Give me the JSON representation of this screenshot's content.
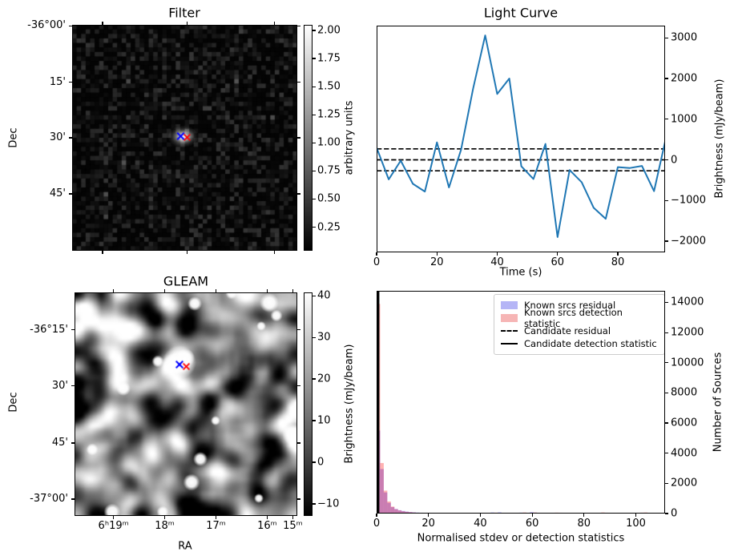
{
  "figure": {
    "background": "#ffffff"
  },
  "filter_panel": {
    "title": "Filter",
    "ylabel": "Dec",
    "dec_ticks": [
      "-36°00'",
      "15'",
      "30'",
      "45'"
    ],
    "colorbar": {
      "label": "arbitrary units",
      "ticks": [
        "2.00",
        "1.75",
        "1.50",
        "1.25",
        "1.00",
        "0.75",
        "0.50",
        "0.25"
      ]
    },
    "markers": [
      {
        "name": "known-source-marker",
        "shape": "x",
        "color": "#0000ff"
      },
      {
        "name": "candidate-marker",
        "shape": "x",
        "color": "#ff0000"
      }
    ]
  },
  "light_curve_panel": {
    "title": "Light Curve",
    "xlabel": "Time (s)",
    "ylabel": "Brightness (mJy/beam)",
    "xticks": [
      "0",
      "20",
      "40",
      "60",
      "80"
    ],
    "yticks": [
      "3000",
      "2000",
      "1000",
      "0",
      "−1000",
      "−2000"
    ]
  },
  "gleam_panel": {
    "title": "GLEAM",
    "xlabel": "RA",
    "ylabel": "Dec",
    "ra_ticks": [
      "6ʰ19ᵐ",
      "18ᵐ",
      "17ᵐ",
      "16ᵐ",
      "15ᵐ"
    ],
    "dec_ticks": [
      "-36°15'",
      "30'",
      "45'",
      "-37°00'"
    ],
    "colorbar": {
      "label": "Brightness (mJy/beam)",
      "ticks": [
        "40",
        "30",
        "20",
        "10",
        "0",
        "−10"
      ]
    },
    "markers": [
      {
        "name": "known-source-marker",
        "shape": "x",
        "color": "#0000ff"
      },
      {
        "name": "candidate-marker",
        "shape": "x",
        "color": "#ff0000"
      }
    ]
  },
  "histogram_panel": {
    "xlabel": "Normalised stdev or detection statistics",
    "ylabel": "Number of Sources",
    "xticks": [
      "0",
      "20",
      "40",
      "60",
      "80",
      "100"
    ],
    "yticks": [
      "0",
      "2000",
      "4000",
      "6000",
      "8000",
      "10000",
      "12000",
      "14000"
    ],
    "legend": {
      "items": [
        {
          "label": "Known srcs residual",
          "swatch": "patch",
          "color": "#b5b5f6"
        },
        {
          "label": "Known srcs detection statistic",
          "swatch": "patch",
          "color": "#f6b5b5"
        },
        {
          "label": "Candidate residual",
          "swatch": "dashed-line",
          "color": "#000000"
        },
        {
          "label": "Candidate detection statistic",
          "swatch": "solid-line",
          "color": "#000000"
        }
      ]
    }
  },
  "chart_data": [
    {
      "type": "line",
      "title": "Light Curve",
      "xlabel": "Time (s)",
      "ylabel": "Brightness (mJy/beam)",
      "x": [
        0,
        4,
        8,
        12,
        16,
        20,
        24,
        28,
        32,
        36,
        40,
        44,
        48,
        52,
        56,
        60,
        64,
        68,
        72,
        76,
        80,
        84,
        88,
        92,
        96
      ],
      "y": [
        300,
        -480,
        -20,
        -590,
        -780,
        430,
        -680,
        250,
        1750,
        3060,
        1620,
        2000,
        -160,
        -470,
        390,
        -1900,
        -250,
        -550,
        -1180,
        -1450,
        -180,
        -200,
        -150,
        -770,
        550
      ],
      "xlim": [
        0,
        95.7
      ],
      "ylim": [
        -2280,
        3300
      ],
      "line_color": "#1f77b4",
      "dashed_hlines": [
        270,
        0,
        -270
      ],
      "grid": false,
      "legend_position": "none"
    },
    {
      "type": "bar",
      "subtype": "histogram",
      "xlabel": "Normalised stdev or detection statistics",
      "ylabel": "Number of Sources",
      "xlim": [
        0,
        111.3
      ],
      "ylim": [
        0,
        14800
      ],
      "bin_width": 1.375,
      "series": [
        {
          "name": "Known srcs residual",
          "color": "rgba(0,0,255,0.3)"
        },
        {
          "name": "Known srcs detection statistic",
          "color": "rgba(255,0,0,0.3)"
        }
      ],
      "bins": [
        [
          0,
          5500,
          13900
        ],
        [
          1.375,
          2950,
          3350
        ],
        [
          2.75,
          1400,
          1520
        ],
        [
          4.125,
          710,
          800
        ],
        [
          5.5,
          430,
          460
        ],
        [
          6.875,
          300,
          290
        ],
        [
          8.25,
          220,
          210
        ],
        [
          9.625,
          170,
          150
        ],
        [
          11,
          130,
          115
        ],
        [
          12.375,
          100,
          90
        ],
        [
          13.75,
          80,
          70
        ],
        [
          15.125,
          65,
          55
        ],
        [
          16.5,
          55,
          45
        ],
        [
          17.875,
          45,
          40
        ],
        [
          19.25,
          38,
          32
        ],
        [
          20.625,
          32,
          28
        ],
        [
          22,
          26,
          24
        ],
        [
          23.375,
          22,
          20
        ],
        [
          24.75,
          20,
          18
        ],
        [
          26.125,
          17,
          15
        ],
        [
          27.5,
          15,
          13
        ],
        [
          28.875,
          13,
          12
        ],
        [
          30.25,
          12,
          10
        ],
        [
          31.625,
          10,
          9
        ],
        [
          33,
          9,
          8
        ],
        [
          34.375,
          8,
          7
        ],
        [
          35.75,
          7,
          7
        ],
        [
          37.125,
          7,
          6
        ],
        [
          38.5,
          6,
          6
        ],
        [
          39.875,
          6,
          5
        ],
        [
          41.25,
          5,
          5
        ],
        [
          42.625,
          5,
          5
        ],
        [
          44,
          70,
          30
        ],
        [
          45.375,
          50,
          60
        ],
        [
          46.75,
          80,
          40
        ],
        [
          48.125,
          40,
          30
        ],
        [
          49.5,
          30,
          40
        ],
        [
          50.875,
          20,
          20
        ],
        [
          55,
          60,
          40
        ],
        [
          56.375,
          40,
          70
        ],
        [
          59.125,
          90,
          60
        ],
        [
          60.5,
          60,
          70
        ],
        [
          68.75,
          0,
          60
        ],
        [
          70.125,
          0,
          55
        ],
        [
          86.625,
          0,
          70
        ],
        [
          88,
          0,
          55
        ],
        [
          90.75,
          0,
          50
        ],
        [
          101.75,
          0,
          60
        ],
        [
          103.125,
          0,
          70
        ]
      ],
      "vlines": [
        {
          "x": 0.4,
          "style": "dashed",
          "label": "Candidate residual"
        },
        {
          "x": 0.4,
          "style": "solid",
          "label": "Candidate detection statistic"
        }
      ],
      "legend_position": "upper right"
    },
    {
      "type": "heatmap",
      "title": "Filter",
      "description": "Dark pixelated noise sky image with bright compact source at centre marked by blue x and red x",
      "colorbar_label": "arbitrary units",
      "colorbar_tick_values": [
        2.0,
        1.75,
        1.5,
        1.25,
        1.0,
        0.75,
        0.5,
        0.25
      ]
    },
    {
      "type": "heatmap",
      "title": "GLEAM",
      "description": "Smooth grey-scale confusion-noise sky image with saturated white source at centre marked by blue x and red x",
      "colorbar_label": "Brightness (mJy/beam)",
      "colorbar_tick_values": [
        40,
        30,
        20,
        10,
        0,
        -10
      ]
    }
  ]
}
